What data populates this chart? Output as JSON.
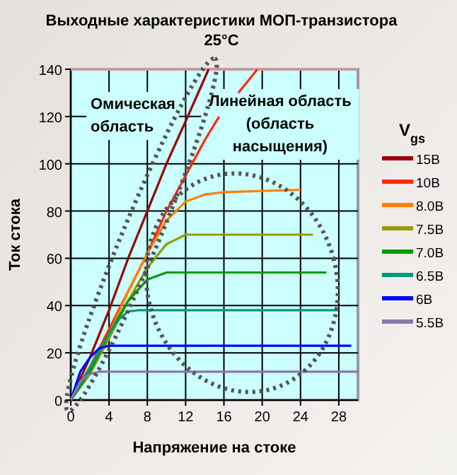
{
  "chart_data": {
    "type": "line",
    "title": "Выходные характеристики МОП-транзистора",
    "subtitle": "25°C",
    "xlabel": "Напряжение на стоке",
    "ylabel": "Ток стока",
    "legend_title": "V$_{gs}$",
    "legend": "right",
    "grid": true,
    "line_style": "solid",
    "xlim": [
      0,
      30
    ],
    "ylim": [
      0,
      140
    ],
    "xticks": [
      0,
      4,
      8,
      12,
      16,
      20,
      24,
      28
    ],
    "yticks": [
      0,
      20,
      40,
      60,
      80,
      100,
      120,
      140
    ],
    "annotations": [
      "Омическая область",
      "Линейная область (область насыщения)"
    ],
    "series": [
      {
        "name": "15В",
        "color": "#990000",
        "x": [
          0,
          2,
          4,
          6,
          8,
          10,
          12,
          14.4
        ],
        "values": [
          0,
          18,
          38,
          60,
          80,
          100,
          118,
          140
        ]
      },
      {
        "name": "10В",
        "color": "#ff2a00",
        "x": [
          0,
          2,
          4,
          6,
          8,
          10,
          12,
          14,
          15.5,
          16.5,
          17.5,
          19.5
        ],
        "values": [
          0,
          14,
          30,
          46,
          62,
          80,
          95,
          110,
          120,
          null,
          130,
          140
        ]
      },
      {
        "name": "8.0В",
        "color": "#ff8000",
        "x": [
          0,
          2,
          4,
          6,
          8,
          10,
          12,
          14,
          16,
          24
        ],
        "values": [
          0,
          12,
          28,
          46,
          62,
          76,
          84,
          87,
          88,
          89
        ]
      },
      {
        "name": "7.5В",
        "color": "#999900",
        "x": [
          0,
          2,
          4,
          6,
          8,
          10,
          12,
          25.3
        ],
        "values": [
          0,
          11,
          26,
          42,
          56,
          66,
          70,
          70
        ]
      },
      {
        "name": "7.0В",
        "color": "#009900",
        "x": [
          0,
          2,
          4,
          6,
          8,
          10,
          26.7
        ],
        "values": [
          0,
          12,
          28,
          42,
          51,
          54,
          54
        ]
      },
      {
        "name": "6.5В",
        "color": "#009980",
        "x": [
          0,
          2,
          4,
          5,
          6,
          7,
          27.9
        ],
        "values": [
          0,
          14,
          28,
          34,
          37.5,
          38,
          38
        ]
      },
      {
        "name": "6В",
        "color": "#0000ff",
        "x": [
          0,
          1,
          2,
          3,
          4,
          29.3
        ],
        "values": [
          0,
          12,
          18,
          22,
          23,
          23
        ]
      },
      {
        "name": "5.5В",
        "color": "#8877aa",
        "x": [
          0,
          1,
          2,
          3,
          30
        ],
        "values": [
          0,
          8,
          11,
          12,
          12
        ]
      }
    ]
  }
}
